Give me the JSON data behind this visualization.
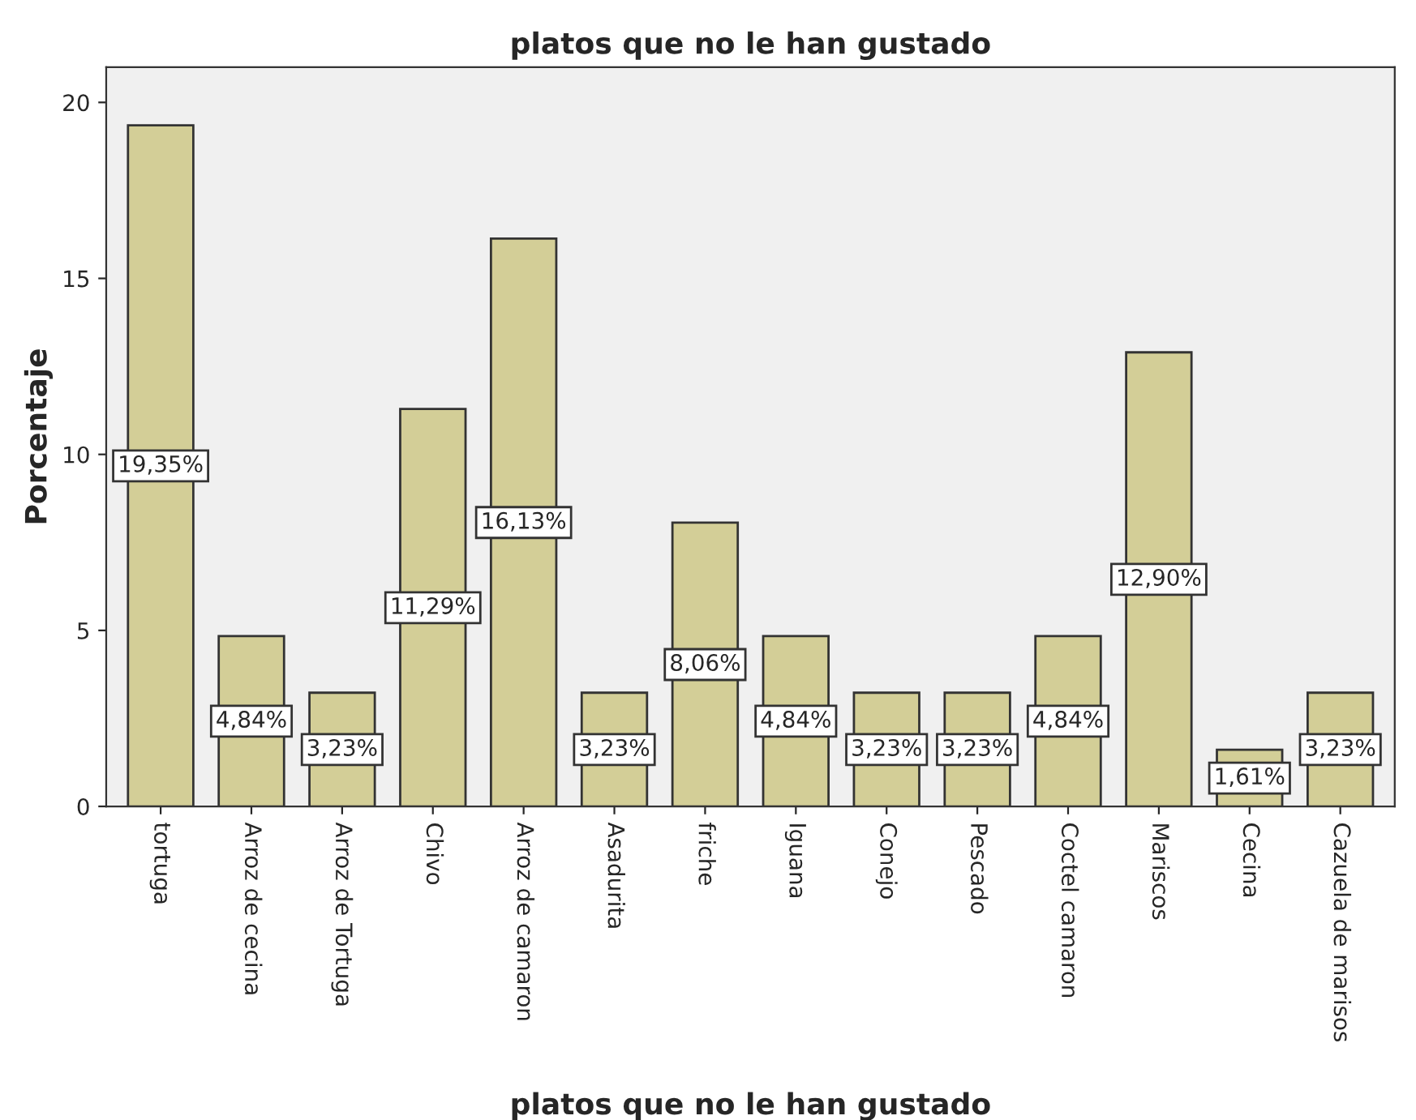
{
  "chart_data": {
    "type": "bar",
    "title": "platos que no le han gustado",
    "xlabel": "platos que no le han gustado",
    "ylabel": "Porcentaje",
    "categories": [
      "tortuga",
      "Arroz de cecina",
      "Arroz de Tortuga",
      "Chivo",
      "Arroz de camaron",
      "Asadurita",
      "friche",
      "Iguana",
      "Conejo",
      "Pescado",
      "Coctel camaron",
      "Mariscos",
      "Cecina",
      "Cazuela de marisos"
    ],
    "values": [
      19.35,
      4.84,
      3.23,
      11.29,
      16.13,
      3.23,
      8.06,
      4.84,
      3.23,
      3.23,
      4.84,
      12.9,
      1.61,
      3.23
    ],
    "value_labels": [
      "19,35%",
      "4,84%",
      "3,23%",
      "11,29%",
      "16,13%",
      "3,23%",
      "8,06%",
      "4,84%",
      "3,23%",
      "3,23%",
      "4,84%",
      "12,90%",
      "1,61%",
      "3,23%"
    ],
    "color": "#d3ce97",
    "ylim": [
      0,
      21
    ],
    "yticks": [
      0,
      5,
      10,
      15,
      20
    ],
    "grid": false
  }
}
